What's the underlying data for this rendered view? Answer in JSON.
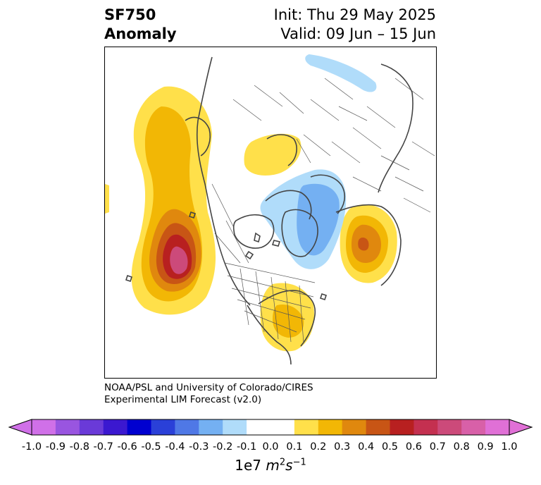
{
  "header": {
    "variable": "SF750",
    "subtitle": "Anomaly",
    "init_label": "Init: Thu 29 May 2025",
    "valid_label": "Valid: 09 Jun – 15 Jun"
  },
  "credit": {
    "line1": "NOAA/PSL and University of Colorado/CIRES",
    "line2": "Experimental LIM Forecast (v2.0)"
  },
  "colorbar": {
    "multiplier": "1e7",
    "units_base": "m",
    "units_exp1": "2",
    "units_mid": "s",
    "units_exp2": "−1",
    "tick_labels": [
      "-1.0",
      "-0.9",
      "-0.8",
      "-0.7",
      "-0.6",
      "-0.5",
      "-0.4",
      "-0.3",
      "-0.2",
      "-0.1",
      "0.0",
      "0.1",
      "0.2",
      "0.3",
      "0.4",
      "0.5",
      "0.6",
      "0.7",
      "0.8",
      "0.9",
      "1.0"
    ],
    "colors": [
      "#d070e8",
      "#9955e0",
      "#6a3ad8",
      "#3b18d0",
      "#0000d0",
      "#2a40d8",
      "#4f78e6",
      "#74b0f2",
      "#b0dcfa",
      "#ffffff",
      "#ffffff",
      "#ffe04a",
      "#f2b705",
      "#e0880e",
      "#c85515",
      "#b82020",
      "#c43050",
      "#cc4a7a",
      "#d860a8",
      "#e070d6"
    ],
    "extend_low": "#d070e8",
    "extend_high": "#e070d6"
  },
  "map": {
    "projection": "north-polar-stereographic",
    "field": "750-hPa streamfunction anomaly",
    "features": [
      "coastlines",
      "country-borders",
      "us-state-borders"
    ]
  }
}
